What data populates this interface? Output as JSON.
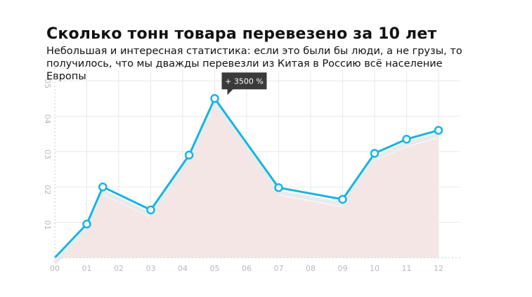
{
  "header": {
    "title": "Сколько тонн товара перевезено за 10 лет",
    "subtitle": "Небольшая и интересная статистика: если это были бы люди, а не грузы, то получилось, что мы дважды перевезли из Китая в Россию всё население Европы"
  },
  "chart_data": {
    "type": "line",
    "title": "Сколько тонн товара перевезено за 10 лет",
    "subtitle": "Небольшая и интересная статистика: если это были бы люди, а не грузы, то получилось, что мы дважды перевезли из Китая в Россию всё население Европы",
    "x_tick_labels": [
      "00",
      "01",
      "02",
      "03",
      "04",
      "05",
      "06",
      "07",
      "08",
      "09",
      "10",
      "11",
      "12"
    ],
    "y_tick_labels": [
      "01",
      "02",
      "03",
      "04",
      "05"
    ],
    "ylim": [
      0,
      5.3
    ],
    "grid": true,
    "series": [
      {
        "points": [
          {
            "x": 0,
            "y": 0
          },
          {
            "x": 1,
            "y": 0.95
          },
          {
            "x": 1.5,
            "y": 2.0
          },
          {
            "x": 3,
            "y": 1.35
          },
          {
            "x": 4.2,
            "y": 2.9
          },
          {
            "x": 5,
            "y": 4.5
          },
          {
            "x": 7,
            "y": 1.98
          },
          {
            "x": 9,
            "y": 1.65
          },
          {
            "x": 10,
            "y": 2.95
          },
          {
            "x": 11,
            "y": 3.35
          },
          {
            "x": 12,
            "y": 3.6
          }
        ]
      }
    ],
    "annotation": {
      "text": "+ 3500 %",
      "point_index": 5
    },
    "colors": {
      "line": "#16b4e2",
      "area": "#f5e6e6",
      "tooltip_bg": "#3a3a3a",
      "grid": "#e6e8ea"
    }
  }
}
